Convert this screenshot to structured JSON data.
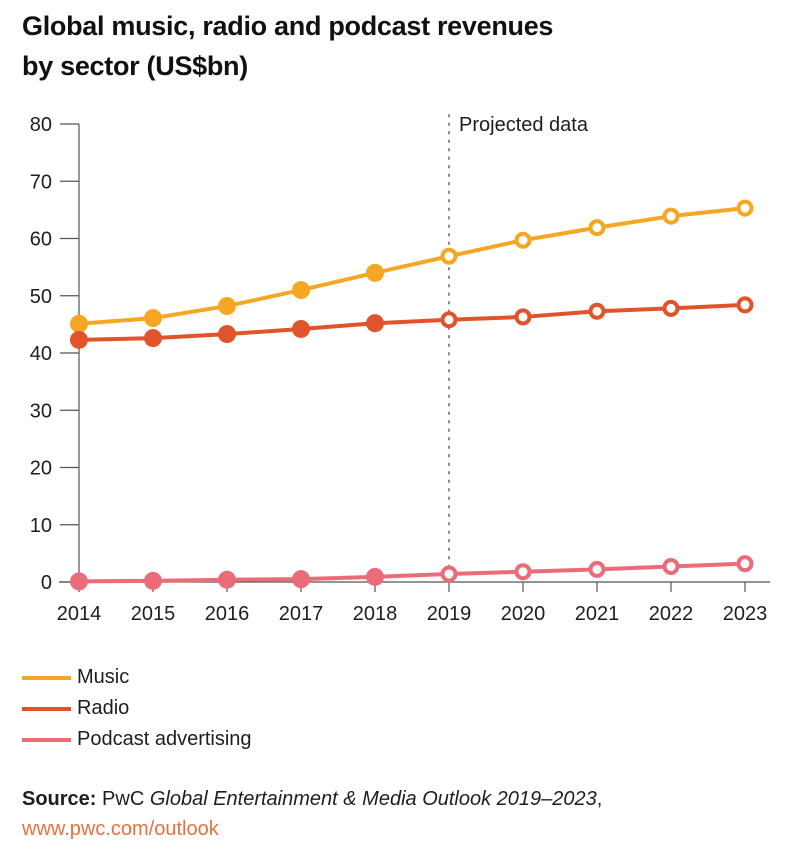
{
  "header": {
    "title_line1": "Global music, radio and podcast revenues",
    "title_line2": "by sector (US$bn)"
  },
  "chart_data": {
    "type": "line",
    "title": "Global music, radio and podcast revenues by sector (US$bn)",
    "xlabel": "",
    "ylabel": "",
    "x": [
      "2014",
      "2015",
      "2016",
      "2017",
      "2018",
      "2019",
      "2020",
      "2021",
      "2022",
      "2023"
    ],
    "ylim": [
      0,
      80
    ],
    "yticks": [
      0,
      10,
      20,
      30,
      40,
      50,
      60,
      70,
      80
    ],
    "grid": false,
    "projection": {
      "start": "2019",
      "label": "Projected data"
    },
    "series": [
      {
        "name": "Music",
        "color": "#F5A623",
        "values": [
          45.1,
          46.1,
          48.2,
          51.0,
          54.0,
          56.9,
          59.7,
          61.9,
          63.9,
          65.3
        ]
      },
      {
        "name": "Radio",
        "color": "#E0532B",
        "values": [
          42.3,
          42.6,
          43.3,
          44.2,
          45.2,
          45.8,
          46.3,
          47.3,
          47.8,
          48.4
        ]
      },
      {
        "name": "Podcast advertising",
        "color": "#EC6B78",
        "values": [
          0.1,
          0.2,
          0.4,
          0.5,
          0.9,
          1.4,
          1.8,
          2.2,
          2.7,
          3.2
        ]
      }
    ],
    "legend_position": "bottom-left"
  },
  "source": {
    "label": "Source:",
    "publisher": "PwC",
    "publication": "Global Entertainment & Media Outlook 2019–2023",
    "trailing": ",",
    "link": "www.pwc.com/outlook"
  }
}
